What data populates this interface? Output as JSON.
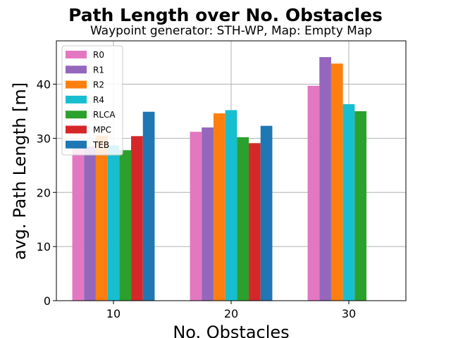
{
  "chart_data": {
    "type": "bar",
    "title": "Path Length over No. Obstacles",
    "subtitle": "Waypoint generator: STH-WP, Map: Empty Map",
    "xlabel": "No. Obstacles",
    "ylabel": "avg. Path Length [m]",
    "categories": [
      "10",
      "20",
      "30"
    ],
    "ylim": [
      0,
      48
    ],
    "yticks": [
      0,
      10,
      20,
      30,
      40
    ],
    "grid": true,
    "legend_position": "top-left",
    "series": [
      {
        "name": "R0",
        "color": "#e377c2",
        "values": [
          28.2,
          31.2,
          39.7
        ]
      },
      {
        "name": "R1",
        "color": "#9467bd",
        "values": [
          28.5,
          32.0,
          45.0
        ]
      },
      {
        "name": "R2",
        "color": "#ff7f0e",
        "values": [
          30.5,
          34.6,
          43.8
        ]
      },
      {
        "name": "R4",
        "color": "#17becf",
        "values": [
          28.7,
          35.2,
          36.3
        ]
      },
      {
        "name": "RLCA",
        "color": "#2ca02c",
        "values": [
          27.8,
          30.2,
          35.0
        ]
      },
      {
        "name": "MPC",
        "color": "#d62728",
        "values": [
          30.4,
          29.1,
          null
        ]
      },
      {
        "name": "TEB",
        "color": "#1f77b4",
        "values": [
          34.9,
          32.3,
          null
        ]
      }
    ]
  }
}
